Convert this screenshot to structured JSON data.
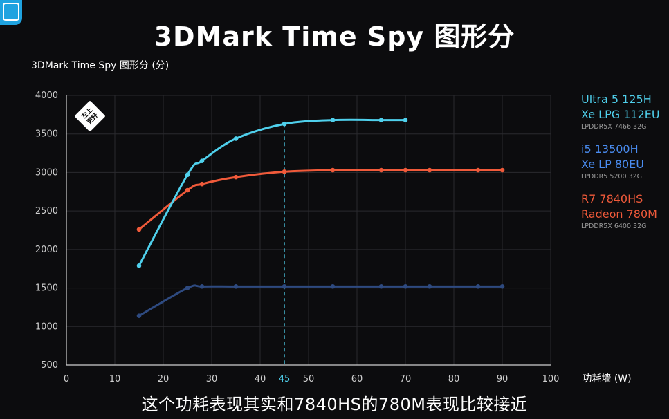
{
  "title": "3DMark Time Spy 图形分",
  "subtitle_caption": "这个功耗表现其实和7840HS的780M表现比较接近",
  "badge_text": [
    "左上",
    "更好"
  ],
  "colors": {
    "background": "#0c0c0e",
    "ultra": "#4fd0ec",
    "i5": "#2e4a80",
    "r7": "#f05a3a",
    "grid": "#2a2a2e",
    "highlight_tick": "#4fd0ec"
  },
  "chart_data": {
    "type": "line",
    "ylabel": "3DMark Time Spy 图形分 (分)",
    "xlabel": "功耗墙 (W)",
    "xlim": [
      0,
      100
    ],
    "ylim": [
      500,
      4000
    ],
    "x_ticks": [
      0,
      10,
      20,
      30,
      40,
      45,
      50,
      60,
      70,
      80,
      90,
      100
    ],
    "y_ticks": [
      500,
      1000,
      1500,
      2000,
      2500,
      3000,
      3500,
      4000
    ],
    "highlight_x": 45,
    "grid": true,
    "legend_position": "right",
    "series": [
      {
        "name": "Ultra 5 125H",
        "name2": "Xe LPG 112EU",
        "memory": "LPDDR5X 7466 32G",
        "color": "#4fd0ec",
        "points": [
          [
            15,
            1790
          ],
          [
            25,
            2970
          ],
          [
            28,
            3150
          ],
          [
            35,
            3440
          ],
          [
            45,
            3630
          ],
          [
            55,
            3680
          ],
          [
            65,
            3680
          ],
          [
            70,
            3680
          ]
        ]
      },
      {
        "name": "i5 13500H",
        "name2": "Xe LP 80EU",
        "memory": "LPDDR5 5200 32G",
        "color": "#2e4a80",
        "points": [
          [
            15,
            1140
          ],
          [
            25,
            1500
          ],
          [
            28,
            1520
          ],
          [
            35,
            1520
          ],
          [
            45,
            1520
          ],
          [
            55,
            1520
          ],
          [
            65,
            1520
          ],
          [
            70,
            1520
          ],
          [
            75,
            1520
          ],
          [
            85,
            1520
          ],
          [
            90,
            1520
          ]
        ]
      },
      {
        "name": "R7 7840HS",
        "name2": "Radeon 780M",
        "memory": "LPDDR5X 6400 32G",
        "color": "#f05a3a",
        "points": [
          [
            15,
            2260
          ],
          [
            25,
            2770
          ],
          [
            28,
            2850
          ],
          [
            35,
            2940
          ],
          [
            45,
            3010
          ],
          [
            55,
            3030
          ],
          [
            65,
            3030
          ],
          [
            70,
            3030
          ],
          [
            75,
            3030
          ],
          [
            85,
            3030
          ],
          [
            90,
            3030
          ]
        ]
      }
    ]
  }
}
